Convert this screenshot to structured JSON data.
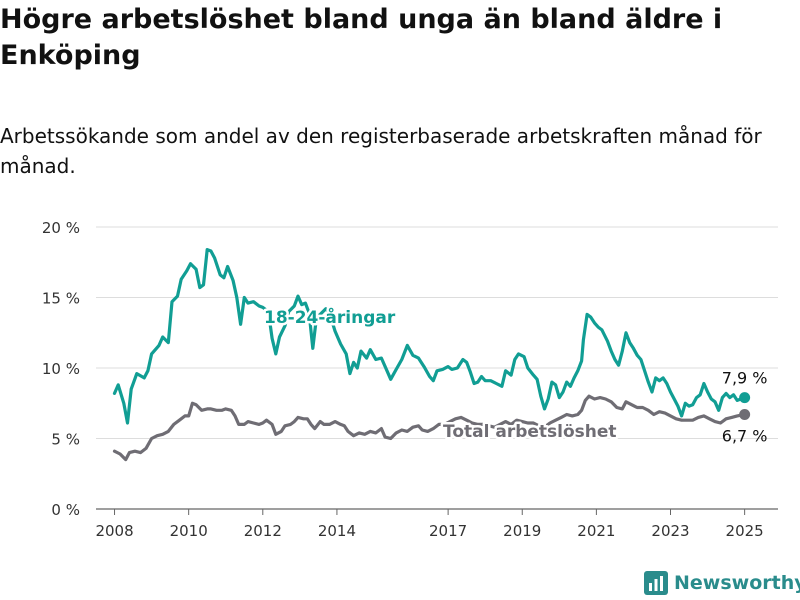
{
  "title": "Högre arbetslöshet bland unga än bland äldre i Enköping",
  "subtitle": "Arbetssökande som andel av den registerbaserade arbetskraften månad för månad.",
  "brand": {
    "name": "Newsworthy",
    "color": "#2a8c8c",
    "icon": "bar-chart-logo-icon"
  },
  "chart_data": {
    "type": "line",
    "y_ticks": [
      0,
      5,
      10,
      15,
      20
    ],
    "y_tick_labels": [
      "0 %",
      "5 %",
      "10 %",
      "15 %",
      "20 %"
    ],
    "ylim": [
      0,
      20
    ],
    "x_ticks": [
      2008,
      2010,
      2012,
      2014,
      2017,
      2019,
      2021,
      2023,
      2025
    ],
    "x_tick_labels": [
      "2008",
      "2010",
      "2012",
      "2014",
      "2017",
      "2019",
      "2021",
      "2023",
      "2025"
    ],
    "xlim": [
      2007.5,
      2025.9
    ],
    "grid": true,
    "series": [
      {
        "name": "18-24-åringar",
        "color": "#119e94",
        "end_label": "7,9 %",
        "points": [
          [
            2008.0,
            8.2
          ],
          [
            2008.1,
            8.8
          ],
          [
            2008.25,
            7.5
          ],
          [
            2008.35,
            6.1
          ],
          [
            2008.45,
            8.5
          ],
          [
            2008.6,
            9.6
          ],
          [
            2008.8,
            9.3
          ],
          [
            2008.9,
            9.8
          ],
          [
            2009.0,
            11.0
          ],
          [
            2009.2,
            11.6
          ],
          [
            2009.3,
            12.2
          ],
          [
            2009.45,
            11.8
          ],
          [
            2009.55,
            14.7
          ],
          [
            2009.7,
            15.1
          ],
          [
            2009.8,
            16.3
          ],
          [
            2009.95,
            16.9
          ],
          [
            2010.05,
            17.4
          ],
          [
            2010.2,
            17.0
          ],
          [
            2010.3,
            15.7
          ],
          [
            2010.4,
            15.9
          ],
          [
            2010.5,
            18.4
          ],
          [
            2010.6,
            18.3
          ],
          [
            2010.7,
            17.8
          ],
          [
            2010.85,
            16.6
          ],
          [
            2010.95,
            16.4
          ],
          [
            2011.05,
            17.2
          ],
          [
            2011.2,
            16.2
          ],
          [
            2011.3,
            15.0
          ],
          [
            2011.4,
            13.1
          ],
          [
            2011.5,
            15.0
          ],
          [
            2011.6,
            14.6
          ],
          [
            2011.75,
            14.7
          ],
          [
            2011.9,
            14.4
          ],
          [
            2012.0,
            14.3
          ],
          [
            2012.15,
            14.0
          ],
          [
            2012.25,
            12.1
          ],
          [
            2012.35,
            11.0
          ],
          [
            2012.45,
            12.2
          ],
          [
            2012.6,
            13.0
          ],
          [
            2012.7,
            14.0
          ],
          [
            2012.85,
            14.4
          ],
          [
            2012.95,
            15.1
          ],
          [
            2013.05,
            14.5
          ],
          [
            2013.15,
            14.6
          ],
          [
            2013.25,
            13.9
          ],
          [
            2013.35,
            11.4
          ],
          [
            2013.45,
            13.6
          ],
          [
            2013.55,
            13.8
          ],
          [
            2013.7,
            14.2
          ],
          [
            2013.8,
            13.9
          ],
          [
            2013.95,
            12.6
          ],
          [
            2014.1,
            11.7
          ],
          [
            2014.25,
            11.0
          ],
          [
            2014.35,
            9.6
          ],
          [
            2014.45,
            10.4
          ],
          [
            2014.55,
            10.0
          ],
          [
            2014.65,
            11.2
          ],
          [
            2014.8,
            10.7
          ],
          [
            2014.9,
            11.3
          ],
          [
            2015.05,
            10.6
          ],
          [
            2015.2,
            10.7
          ],
          [
            2015.35,
            9.8
          ],
          [
            2015.45,
            9.2
          ],
          [
            2015.6,
            9.9
          ],
          [
            2015.75,
            10.6
          ],
          [
            2015.9,
            11.6
          ],
          [
            2016.05,
            10.9
          ],
          [
            2016.2,
            10.7
          ],
          [
            2016.35,
            10.1
          ],
          [
            2016.5,
            9.4
          ],
          [
            2016.6,
            9.1
          ],
          [
            2016.7,
            9.8
          ],
          [
            2016.85,
            9.9
          ],
          [
            2017.0,
            10.1
          ],
          [
            2017.1,
            9.9
          ],
          [
            2017.25,
            10.0
          ],
          [
            2017.4,
            10.6
          ],
          [
            2017.5,
            10.4
          ],
          [
            2017.6,
            9.7
          ],
          [
            2017.7,
            8.9
          ],
          [
            2017.8,
            9.0
          ],
          [
            2017.9,
            9.4
          ],
          [
            2018.0,
            9.1
          ],
          [
            2018.15,
            9.1
          ],
          [
            2018.3,
            8.9
          ],
          [
            2018.45,
            8.7
          ],
          [
            2018.55,
            9.8
          ],
          [
            2018.7,
            9.5
          ],
          [
            2018.8,
            10.6
          ],
          [
            2018.9,
            11.0
          ],
          [
            2019.05,
            10.8
          ],
          [
            2019.15,
            10.0
          ],
          [
            2019.3,
            9.5
          ],
          [
            2019.4,
            9.2
          ],
          [
            2019.5,
            8.0
          ],
          [
            2019.6,
            7.1
          ],
          [
            2019.7,
            7.8
          ],
          [
            2019.8,
            9.0
          ],
          [
            2019.9,
            8.8
          ],
          [
            2020.0,
            7.9
          ],
          [
            2020.1,
            8.3
          ],
          [
            2020.2,
            9.0
          ],
          [
            2020.3,
            8.7
          ],
          [
            2020.4,
            9.3
          ],
          [
            2020.5,
            9.8
          ],
          [
            2020.6,
            10.5
          ],
          [
            2020.65,
            12.0
          ],
          [
            2020.75,
            13.8
          ],
          [
            2020.85,
            13.6
          ],
          [
            2020.95,
            13.2
          ],
          [
            2021.05,
            12.9
          ],
          [
            2021.15,
            12.7
          ],
          [
            2021.3,
            11.9
          ],
          [
            2021.4,
            11.2
          ],
          [
            2021.5,
            10.6
          ],
          [
            2021.6,
            10.2
          ],
          [
            2021.7,
            11.2
          ],
          [
            2021.8,
            12.5
          ],
          [
            2021.9,
            11.8
          ],
          [
            2022.0,
            11.4
          ],
          [
            2022.1,
            10.9
          ],
          [
            2022.2,
            10.6
          ],
          [
            2022.3,
            9.8
          ],
          [
            2022.4,
            9.0
          ],
          [
            2022.5,
            8.3
          ],
          [
            2022.6,
            9.3
          ],
          [
            2022.7,
            9.1
          ],
          [
            2022.8,
            9.3
          ],
          [
            2022.9,
            8.9
          ],
          [
            2023.0,
            8.3
          ],
          [
            2023.1,
            7.8
          ],
          [
            2023.2,
            7.3
          ],
          [
            2023.3,
            6.6
          ],
          [
            2023.4,
            7.5
          ],
          [
            2023.5,
            7.3
          ],
          [
            2023.6,
            7.4
          ],
          [
            2023.7,
            7.9
          ],
          [
            2023.8,
            8.1
          ],
          [
            2023.9,
            8.9
          ],
          [
            2024.0,
            8.3
          ],
          [
            2024.1,
            7.8
          ],
          [
            2024.2,
            7.6
          ],
          [
            2024.3,
            7.0
          ],
          [
            2024.4,
            7.9
          ],
          [
            2024.5,
            8.2
          ],
          [
            2024.6,
            7.9
          ],
          [
            2024.7,
            8.1
          ],
          [
            2024.8,
            7.7
          ],
          [
            2024.9,
            7.8
          ],
          [
            2025.0,
            7.9
          ]
        ]
      },
      {
        "name": "Total arbetslöshet",
        "color": "#6f6d74",
        "end_label": "6,7 %",
        "points": [
          [
            2008.0,
            4.1
          ],
          [
            2008.15,
            3.9
          ],
          [
            2008.3,
            3.5
          ],
          [
            2008.4,
            4.0
          ],
          [
            2008.55,
            4.1
          ],
          [
            2008.7,
            4.0
          ],
          [
            2008.85,
            4.3
          ],
          [
            2009.0,
            5.0
          ],
          [
            2009.15,
            5.2
          ],
          [
            2009.3,
            5.3
          ],
          [
            2009.45,
            5.5
          ],
          [
            2009.6,
            6.0
          ],
          [
            2009.75,
            6.3
          ],
          [
            2009.9,
            6.6
          ],
          [
            2010.0,
            6.6
          ],
          [
            2010.1,
            7.5
          ],
          [
            2010.2,
            7.4
          ],
          [
            2010.35,
            7.0
          ],
          [
            2010.5,
            7.1
          ],
          [
            2010.6,
            7.1
          ],
          [
            2010.75,
            7.0
          ],
          [
            2010.9,
            7.0
          ],
          [
            2011.0,
            7.1
          ],
          [
            2011.15,
            7.0
          ],
          [
            2011.25,
            6.6
          ],
          [
            2011.35,
            6.0
          ],
          [
            2011.5,
            6.0
          ],
          [
            2011.6,
            6.2
          ],
          [
            2011.75,
            6.1
          ],
          [
            2011.9,
            6.0
          ],
          [
            2012.0,
            6.1
          ],
          [
            2012.1,
            6.3
          ],
          [
            2012.25,
            6.0
          ],
          [
            2012.35,
            5.3
          ],
          [
            2012.5,
            5.5
          ],
          [
            2012.6,
            5.9
          ],
          [
            2012.75,
            6.0
          ],
          [
            2012.85,
            6.2
          ],
          [
            2012.95,
            6.5
          ],
          [
            2013.1,
            6.4
          ],
          [
            2013.2,
            6.4
          ],
          [
            2013.3,
            6.0
          ],
          [
            2013.4,
            5.7
          ],
          [
            2013.55,
            6.2
          ],
          [
            2013.65,
            6.0
          ],
          [
            2013.8,
            6.0
          ],
          [
            2013.95,
            6.2
          ],
          [
            2014.1,
            6.0
          ],
          [
            2014.2,
            5.9
          ],
          [
            2014.3,
            5.5
          ],
          [
            2014.45,
            5.2
          ],
          [
            2014.6,
            5.4
          ],
          [
            2014.75,
            5.3
          ],
          [
            2014.9,
            5.5
          ],
          [
            2015.05,
            5.4
          ],
          [
            2015.2,
            5.7
          ],
          [
            2015.3,
            5.1
          ],
          [
            2015.45,
            5.0
          ],
          [
            2015.6,
            5.4
          ],
          [
            2015.75,
            5.6
          ],
          [
            2015.9,
            5.5
          ],
          [
            2016.05,
            5.8
          ],
          [
            2016.2,
            5.9
          ],
          [
            2016.3,
            5.6
          ],
          [
            2016.45,
            5.5
          ],
          [
            2016.6,
            5.7
          ],
          [
            2016.75,
            6.0
          ],
          [
            2016.9,
            6.0
          ],
          [
            2017.05,
            6.2
          ],
          [
            2017.2,
            6.4
          ],
          [
            2017.35,
            6.5
          ],
          [
            2017.5,
            6.3
          ],
          [
            2017.65,
            6.1
          ],
          [
            2017.8,
            6.0
          ],
          [
            2017.95,
            6.0
          ],
          [
            2018.1,
            5.9
          ],
          [
            2018.25,
            5.8
          ],
          [
            2018.4,
            6.0
          ],
          [
            2018.55,
            6.2
          ],
          [
            2018.7,
            6.0
          ],
          [
            2018.85,
            6.3
          ],
          [
            2019.0,
            6.2
          ],
          [
            2019.15,
            6.1
          ],
          [
            2019.3,
            6.1
          ],
          [
            2019.45,
            5.9
          ],
          [
            2019.6,
            5.8
          ],
          [
            2019.75,
            6.1
          ],
          [
            2019.9,
            6.3
          ],
          [
            2020.05,
            6.5
          ],
          [
            2020.2,
            6.7
          ],
          [
            2020.35,
            6.6
          ],
          [
            2020.5,
            6.7
          ],
          [
            2020.6,
            7.0
          ],
          [
            2020.7,
            7.7
          ],
          [
            2020.8,
            8.0
          ],
          [
            2020.95,
            7.8
          ],
          [
            2021.1,
            7.9
          ],
          [
            2021.25,
            7.8
          ],
          [
            2021.4,
            7.6
          ],
          [
            2021.55,
            7.2
          ],
          [
            2021.7,
            7.1
          ],
          [
            2021.8,
            7.6
          ],
          [
            2021.95,
            7.4
          ],
          [
            2022.1,
            7.2
          ],
          [
            2022.25,
            7.2
          ],
          [
            2022.4,
            7.0
          ],
          [
            2022.55,
            6.7
          ],
          [
            2022.7,
            6.9
          ],
          [
            2022.85,
            6.8
          ],
          [
            2023.0,
            6.6
          ],
          [
            2023.15,
            6.4
          ],
          [
            2023.3,
            6.3
          ],
          [
            2023.45,
            6.3
          ],
          [
            2023.6,
            6.3
          ],
          [
            2023.75,
            6.5
          ],
          [
            2023.9,
            6.6
          ],
          [
            2024.05,
            6.4
          ],
          [
            2024.2,
            6.2
          ],
          [
            2024.35,
            6.1
          ],
          [
            2024.5,
            6.4
          ],
          [
            2024.65,
            6.5
          ],
          [
            2024.8,
            6.6
          ],
          [
            2025.0,
            6.7
          ]
        ]
      }
    ]
  }
}
